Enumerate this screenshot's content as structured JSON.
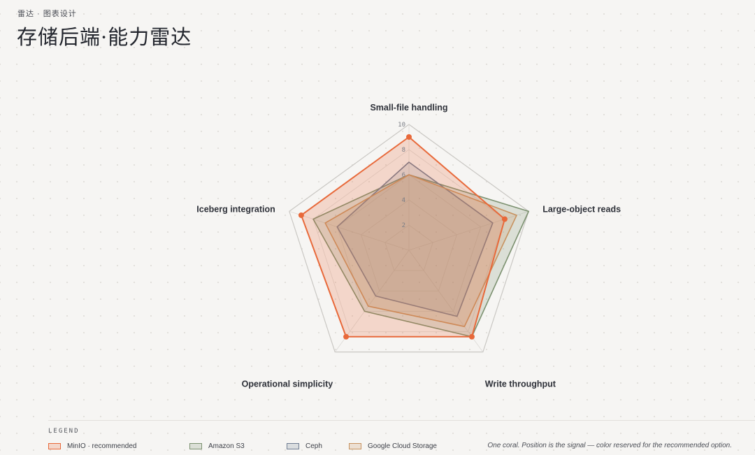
{
  "header": {
    "eyebrow": "雷达 · 图表设计",
    "title": "存储后端·能力雷达"
  },
  "chart_data": {
    "type": "radar",
    "title": "存储后端·能力雷达",
    "axes": [
      "Small-file handling",
      "Large-object reads",
      "Write throughput",
      "Operational simplicity",
      "Iceberg integration"
    ],
    "range": [
      0,
      10
    ],
    "ticks": [
      2,
      4,
      6,
      8,
      10
    ],
    "grid": true,
    "series": [
      {
        "name": "MinIO · recommended",
        "values": [
          9.0,
          8.0,
          8.5,
          8.5,
          9.0
        ],
        "color": "#e8693a",
        "fill_opacity": 0.22,
        "markers": true
      },
      {
        "name": "Amazon S3",
        "values": [
          6.0,
          10.0,
          8.5,
          6.0,
          8.0
        ],
        "color": "#7c9170",
        "fill_opacity": 0.22,
        "markers": false
      },
      {
        "name": "Ceph",
        "values": [
          7.0,
          7.0,
          6.5,
          4.5,
          6.0
        ],
        "color": "#6f7d92",
        "fill_opacity": 0.18,
        "markers": false
      },
      {
        "name": "Google Cloud Storage",
        "values": [
          6.0,
          9.0,
          7.5,
          5.5,
          7.0
        ],
        "color": "#c7925f",
        "fill_opacity": 0.22,
        "markers": false
      }
    ]
  },
  "legend": {
    "heading": "LEGEND",
    "note": "One coral. Position is the signal — color reserved for the recommended option."
  }
}
